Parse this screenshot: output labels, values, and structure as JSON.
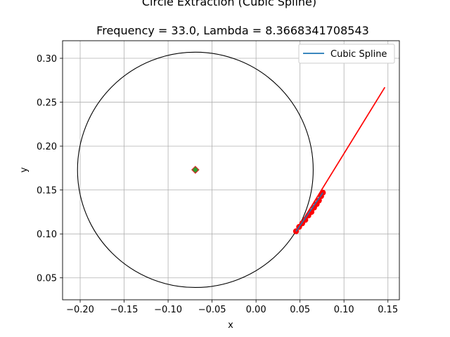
{
  "chart_data": {
    "type": "scatter",
    "title": "Circle Extraction (Cubic Spline)",
    "subtitle": "Frequency = 33.0, Lambda = 8.3668341708543",
    "xlabel": "x",
    "ylabel": "y",
    "xlim": [
      -0.22,
      0.163
    ],
    "ylim": [
      0.025,
      0.32
    ],
    "xticks": [
      -0.2,
      -0.15,
      -0.1,
      -0.05,
      0.0,
      0.05,
      0.1,
      0.15
    ],
    "xtick_labels": [
      "−0.20",
      "−0.15",
      "−0.10",
      "−0.05",
      "0.00",
      "0.05",
      "0.10",
      "0.15"
    ],
    "yticks": [
      0.05,
      0.1,
      0.15,
      0.2,
      0.25,
      0.3
    ],
    "ytick_labels": [
      "0.05",
      "0.10",
      "0.15",
      "0.20",
      "0.25",
      "0.30"
    ],
    "grid": true,
    "legend": {
      "position": "top-right",
      "entries": [
        {
          "label": "Cubic Spline",
          "color": "#1f77b4"
        }
      ]
    },
    "circle": {
      "center": [
        -0.069,
        0.173
      ],
      "radius": 0.134,
      "color": "#000000"
    },
    "center_marker": {
      "x": -0.069,
      "y": 0.173,
      "color": "#2ca02c",
      "edge_color": "#d62728"
    },
    "points": {
      "color": "#ff0000",
      "x": [
        0.0455,
        0.049,
        0.0525,
        0.056,
        0.0595,
        0.063,
        0.066,
        0.069,
        0.0715,
        0.074,
        0.076
      ],
      "y": [
        0.103,
        0.108,
        0.112,
        0.116,
        0.121,
        0.125,
        0.13,
        0.134,
        0.138,
        0.143,
        0.147
      ]
    },
    "spline": {
      "color": "#1f77b4",
      "x": [
        0.0455,
        0.076
      ],
      "y": [
        0.103,
        0.147
      ]
    },
    "tangent_line": {
      "color": "#ff0000",
      "x": [
        0.0455,
        0.1465
      ],
      "y": [
        0.103,
        0.267
      ]
    }
  }
}
